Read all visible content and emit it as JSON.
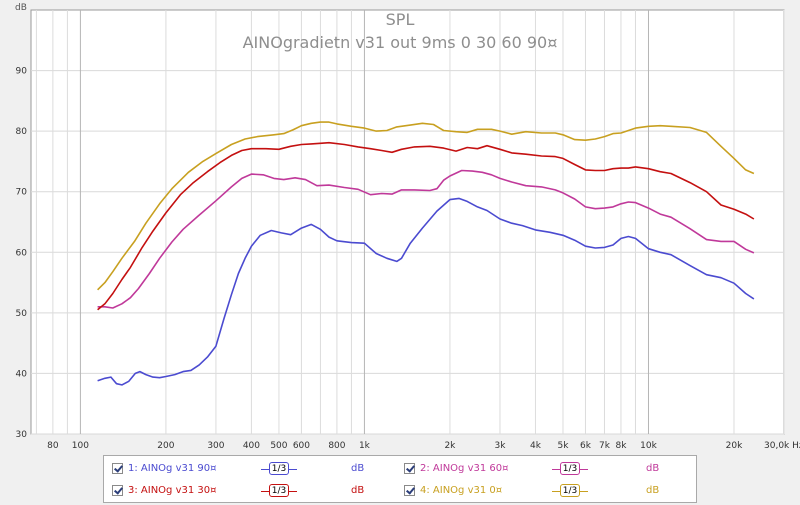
{
  "chart_data": {
    "type": "line",
    "title": "SPL",
    "subtitle": "AINOgradietn v31 out 9ms 0 30 60 90¤",
    "ylabel": "dB",
    "xunit": "Hz",
    "xscale": "log",
    "xlim": [
      67,
      30000
    ],
    "ylim": [
      30,
      100
    ],
    "grid": true,
    "yticks": [
      30,
      40,
      50,
      60,
      70,
      80,
      90
    ],
    "xticks": [
      {
        "value": 80,
        "label": "80"
      },
      {
        "value": 100,
        "label": "100"
      },
      {
        "value": 200,
        "label": "200"
      },
      {
        "value": 300,
        "label": "300"
      },
      {
        "value": 400,
        "label": "400"
      },
      {
        "value": 500,
        "label": "500"
      },
      {
        "value": 600,
        "label": "600"
      },
      {
        "value": 800,
        "label": "800"
      },
      {
        "value": 1000,
        "label": "1k"
      },
      {
        "value": 2000,
        "label": "2k"
      },
      {
        "value": 3000,
        "label": "3k"
      },
      {
        "value": 4000,
        "label": "4k"
      },
      {
        "value": 5000,
        "label": "5k"
      },
      {
        "value": 6000,
        "label": "6k"
      },
      {
        "value": 7000,
        "label": "7k"
      },
      {
        "value": 8000,
        "label": "8k"
      },
      {
        "value": 10000,
        "label": "10k"
      },
      {
        "value": 20000,
        "label": "20k"
      },
      {
        "value": 30000,
        "label": "30,0k Hz"
      }
    ],
    "series": [
      {
        "name": "1: AINOg v31 90¤",
        "color": "#4b4bd0",
        "points": [
          [
            115,
            38.8
          ],
          [
            122,
            39.2
          ],
          [
            128,
            39.4
          ],
          [
            134,
            38.3
          ],
          [
            140,
            38.1
          ],
          [
            148,
            38.7
          ],
          [
            156,
            40.0
          ],
          [
            162,
            40.3
          ],
          [
            170,
            39.8
          ],
          [
            180,
            39.4
          ],
          [
            190,
            39.3
          ],
          [
            200,
            39.5
          ],
          [
            215,
            39.8
          ],
          [
            230,
            40.3
          ],
          [
            245,
            40.5
          ],
          [
            262,
            41.4
          ],
          [
            280,
            42.7
          ],
          [
            300,
            44.5
          ],
          [
            320,
            49.0
          ],
          [
            340,
            53.0
          ],
          [
            360,
            56.5
          ],
          [
            380,
            59.0
          ],
          [
            400,
            61.0
          ],
          [
            430,
            62.8
          ],
          [
            470,
            63.6
          ],
          [
            510,
            63.2
          ],
          [
            550,
            62.9
          ],
          [
            600,
            64.0
          ],
          [
            650,
            64.6
          ],
          [
            700,
            63.8
          ],
          [
            750,
            62.5
          ],
          [
            800,
            61.9
          ],
          [
            900,
            61.6
          ],
          [
            1000,
            61.5
          ],
          [
            1100,
            59.8
          ],
          [
            1200,
            59.0
          ],
          [
            1300,
            58.5
          ],
          [
            1350,
            59.0
          ],
          [
            1450,
            61.5
          ],
          [
            1600,
            64.0
          ],
          [
            1800,
            66.8
          ],
          [
            2000,
            68.7
          ],
          [
            2150,
            68.9
          ],
          [
            2300,
            68.4
          ],
          [
            2500,
            67.5
          ],
          [
            2700,
            66.9
          ],
          [
            3000,
            65.5
          ],
          [
            3300,
            64.8
          ],
          [
            3600,
            64.4
          ],
          [
            4000,
            63.7
          ],
          [
            4500,
            63.3
          ],
          [
            5000,
            62.8
          ],
          [
            5500,
            62.0
          ],
          [
            6000,
            61.0
          ],
          [
            6500,
            60.7
          ],
          [
            7000,
            60.8
          ],
          [
            7500,
            61.2
          ],
          [
            8000,
            62.3
          ],
          [
            8500,
            62.6
          ],
          [
            9000,
            62.3
          ],
          [
            10000,
            60.6
          ],
          [
            11000,
            60.0
          ],
          [
            12000,
            59.6
          ],
          [
            14000,
            57.8
          ],
          [
            16000,
            56.3
          ],
          [
            18000,
            55.8
          ],
          [
            20000,
            54.9
          ],
          [
            22000,
            53.2
          ],
          [
            23500,
            52.3
          ]
        ]
      },
      {
        "name": "2: AINOg v31 60¤",
        "color": "#c0399a",
        "points": [
          [
            115,
            51.0
          ],
          [
            122,
            51.0
          ],
          [
            130,
            50.8
          ],
          [
            140,
            51.5
          ],
          [
            150,
            52.5
          ],
          [
            160,
            54.0
          ],
          [
            175,
            56.5
          ],
          [
            190,
            59.0
          ],
          [
            210,
            61.7
          ],
          [
            230,
            63.8
          ],
          [
            260,
            66.0
          ],
          [
            300,
            68.5
          ],
          [
            340,
            70.8
          ],
          [
            370,
            72.2
          ],
          [
            400,
            72.9
          ],
          [
            440,
            72.8
          ],
          [
            480,
            72.2
          ],
          [
            520,
            72.0
          ],
          [
            570,
            72.3
          ],
          [
            620,
            72.0
          ],
          [
            680,
            71.0
          ],
          [
            750,
            71.1
          ],
          [
            850,
            70.7
          ],
          [
            950,
            70.4
          ],
          [
            1050,
            69.5
          ],
          [
            1150,
            69.7
          ],
          [
            1250,
            69.6
          ],
          [
            1350,
            70.3
          ],
          [
            1500,
            70.3
          ],
          [
            1700,
            70.2
          ],
          [
            1800,
            70.5
          ],
          [
            1900,
            71.9
          ],
          [
            2000,
            72.6
          ],
          [
            2200,
            73.5
          ],
          [
            2400,
            73.4
          ],
          [
            2600,
            73.2
          ],
          [
            2800,
            72.8
          ],
          [
            3000,
            72.2
          ],
          [
            3300,
            71.6
          ],
          [
            3700,
            71.0
          ],
          [
            4200,
            70.8
          ],
          [
            4700,
            70.3
          ],
          [
            5000,
            69.8
          ],
          [
            5500,
            68.8
          ],
          [
            6000,
            67.5
          ],
          [
            6500,
            67.2
          ],
          [
            7000,
            67.3
          ],
          [
            7500,
            67.5
          ],
          [
            8000,
            68.0
          ],
          [
            8500,
            68.3
          ],
          [
            9000,
            68.2
          ],
          [
            10000,
            67.3
          ],
          [
            11000,
            66.3
          ],
          [
            12000,
            65.8
          ],
          [
            14000,
            63.9
          ],
          [
            16000,
            62.1
          ],
          [
            18000,
            61.8
          ],
          [
            20000,
            61.8
          ],
          [
            22000,
            60.5
          ],
          [
            23500,
            59.9
          ]
        ]
      },
      {
        "name": "3: AINOg v31 30¤",
        "color": "#c41010",
        "points": [
          [
            115,
            50.5
          ],
          [
            122,
            51.5
          ],
          [
            130,
            53.2
          ],
          [
            140,
            55.5
          ],
          [
            150,
            57.5
          ],
          [
            165,
            60.8
          ],
          [
            180,
            63.5
          ],
          [
            200,
            66.5
          ],
          [
            225,
            69.5
          ],
          [
            250,
            71.5
          ],
          [
            280,
            73.3
          ],
          [
            310,
            74.8
          ],
          [
            340,
            76.0
          ],
          [
            370,
            76.8
          ],
          [
            400,
            77.1
          ],
          [
            450,
            77.1
          ],
          [
            500,
            77.0
          ],
          [
            550,
            77.5
          ],
          [
            600,
            77.8
          ],
          [
            650,
            77.9
          ],
          [
            700,
            78.0
          ],
          [
            750,
            78.1
          ],
          [
            850,
            77.8
          ],
          [
            950,
            77.4
          ],
          [
            1050,
            77.1
          ],
          [
            1150,
            76.8
          ],
          [
            1250,
            76.5
          ],
          [
            1350,
            77.0
          ],
          [
            1500,
            77.4
          ],
          [
            1700,
            77.5
          ],
          [
            1900,
            77.2
          ],
          [
            2100,
            76.7
          ],
          [
            2300,
            77.3
          ],
          [
            2500,
            77.1
          ],
          [
            2700,
            77.6
          ],
          [
            3000,
            77.0
          ],
          [
            3300,
            76.4
          ],
          [
            3700,
            76.2
          ],
          [
            4200,
            75.9
          ],
          [
            4700,
            75.8
          ],
          [
            5000,
            75.5
          ],
          [
            5500,
            74.5
          ],
          [
            6000,
            73.6
          ],
          [
            6500,
            73.5
          ],
          [
            7000,
            73.5
          ],
          [
            7500,
            73.8
          ],
          [
            8000,
            73.9
          ],
          [
            8500,
            73.9
          ],
          [
            9000,
            74.1
          ],
          [
            10000,
            73.8
          ],
          [
            11000,
            73.3
          ],
          [
            12000,
            73.0
          ],
          [
            14000,
            71.5
          ],
          [
            16000,
            70.0
          ],
          [
            18000,
            67.8
          ],
          [
            20000,
            67.1
          ],
          [
            22000,
            66.3
          ],
          [
            23500,
            65.5
          ]
        ]
      },
      {
        "name": "4: AINOg v31 0¤",
        "color": "#c8a020",
        "points": [
          [
            115,
            53.8
          ],
          [
            122,
            55.0
          ],
          [
            130,
            56.8
          ],
          [
            140,
            59.0
          ],
          [
            155,
            61.8
          ],
          [
            170,
            64.8
          ],
          [
            190,
            68.0
          ],
          [
            210,
            70.5
          ],
          [
            240,
            73.2
          ],
          [
            270,
            75.0
          ],
          [
            300,
            76.3
          ],
          [
            340,
            77.8
          ],
          [
            380,
            78.7
          ],
          [
            420,
            79.1
          ],
          [
            480,
            79.4
          ],
          [
            520,
            79.6
          ],
          [
            560,
            80.2
          ],
          [
            600,
            80.9
          ],
          [
            650,
            81.3
          ],
          [
            700,
            81.5
          ],
          [
            750,
            81.5
          ],
          [
            800,
            81.2
          ],
          [
            900,
            80.8
          ],
          [
            1000,
            80.5
          ],
          [
            1100,
            80.0
          ],
          [
            1200,
            80.1
          ],
          [
            1300,
            80.7
          ],
          [
            1450,
            81.0
          ],
          [
            1600,
            81.3
          ],
          [
            1750,
            81.1
          ],
          [
            1900,
            80.1
          ],
          [
            2100,
            79.9
          ],
          [
            2300,
            79.8
          ],
          [
            2500,
            80.3
          ],
          [
            2800,
            80.3
          ],
          [
            3000,
            80.0
          ],
          [
            3300,
            79.5
          ],
          [
            3700,
            79.9
          ],
          [
            4200,
            79.7
          ],
          [
            4700,
            79.7
          ],
          [
            5000,
            79.4
          ],
          [
            5500,
            78.6
          ],
          [
            6000,
            78.5
          ],
          [
            6500,
            78.7
          ],
          [
            7000,
            79.1
          ],
          [
            7500,
            79.6
          ],
          [
            8000,
            79.7
          ],
          [
            9000,
            80.5
          ],
          [
            10000,
            80.8
          ],
          [
            11000,
            80.9
          ],
          [
            12000,
            80.8
          ],
          [
            14000,
            80.6
          ],
          [
            16000,
            79.8
          ],
          [
            18000,
            77.5
          ],
          [
            20000,
            75.5
          ],
          [
            22000,
            73.6
          ],
          [
            23500,
            73.0
          ]
        ]
      }
    ]
  },
  "legend": {
    "items": [
      {
        "label": "1: AINOg v31 90¤",
        "smoothing": "1/3",
        "unit": "dB",
        "color": "#4b4bd0",
        "checked": true
      },
      {
        "label": "2: AINOg v31 60¤",
        "smoothing": "1/3",
        "unit": "dB",
        "color": "#c0399a",
        "checked": true
      },
      {
        "label": "3: AINOg v31 30¤",
        "smoothing": "1/3",
        "unit": "dB",
        "color": "#c41010",
        "checked": true
      },
      {
        "label": "4: AINOg v31 0¤",
        "smoothing": "1/3",
        "unit": "dB",
        "color": "#c8a020",
        "checked": true
      }
    ]
  }
}
